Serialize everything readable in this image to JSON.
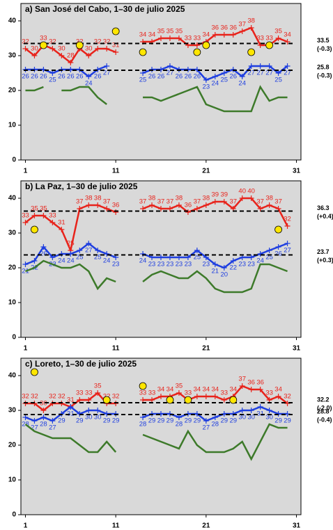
{
  "chart_data": [
    {
      "type": "line",
      "title": "a) San José del Cabo, 1–30 de julio 2025",
      "xlim": [
        0.5,
        31.5
      ],
      "ylim": [
        0,
        45
      ],
      "xticks": [
        1,
        11,
        21,
        31
      ],
      "yticks": [
        0,
        10,
        20,
        30,
        40
      ],
      "x": [
        1,
        2,
        3,
        4,
        5,
        6,
        7,
        8,
        9,
        10,
        11,
        12,
        13,
        14,
        15,
        16,
        17,
        18,
        19,
        20,
        21,
        22,
        23,
        24,
        25,
        26,
        27,
        28,
        29,
        30
      ],
      "series": [
        {
          "color": "#e8231b",
          "labels": true,
          "label_side": "above",
          "values": [
            32,
            30,
            33,
            32,
            30,
            28,
            32,
            30,
            32,
            32,
            31,
            null,
            null,
            34,
            34,
            35,
            35,
            35,
            33,
            33,
            34,
            36,
            36,
            36,
            37,
            38,
            33,
            33,
            35,
            34
          ]
        },
        {
          "color": "#1f3fe0",
          "labels": true,
          "label_side": "below",
          "values": [
            26,
            26,
            26,
            25,
            26,
            26,
            26,
            24,
            26,
            27,
            null,
            null,
            null,
            25,
            26,
            26,
            27,
            26,
            26,
            26,
            23,
            24,
            25,
            26,
            24,
            27,
            27,
            27,
            25,
            27
          ]
        },
        {
          "color": "#3d7a2a",
          "labels": false,
          "values": [
            20,
            20,
            21,
            null,
            20,
            20,
            21,
            21,
            18,
            16,
            null,
            null,
            null,
            18,
            18,
            17,
            18,
            19,
            20,
            21,
            16,
            15,
            14,
            14,
            14,
            14,
            21,
            17,
            18,
            18
          ]
        }
      ],
      "points": {
        "color": "#ffe600",
        "x": [
          3,
          7,
          11,
          14,
          20,
          21,
          26,
          28
        ],
        "y": [
          33,
          33,
          37,
          31,
          31,
          33,
          31,
          33
        ]
      },
      "hlines": [
        {
          "value": 33.5,
          "label": "33.5",
          "anomaly": "(-0.3)"
        },
        {
          "value": 25.8,
          "label": "25.8",
          "anomaly": "(-0.3)"
        }
      ]
    },
    {
      "type": "line",
      "title": "b) La Paz, 1–30 de julio 2025",
      "xlim": [
        0.5,
        31.5
      ],
      "ylim": [
        0,
        45
      ],
      "xticks": [
        1,
        11,
        21,
        31
      ],
      "yticks": [
        0,
        10,
        20,
        30,
        40
      ],
      "x": [
        1,
        2,
        3,
        4,
        5,
        6,
        7,
        8,
        9,
        10,
        11,
        12,
        13,
        14,
        15,
        16,
        17,
        18,
        19,
        20,
        21,
        22,
        23,
        24,
        25,
        26,
        27,
        28,
        29,
        30
      ],
      "series": [
        {
          "color": "#e8231b",
          "labels": true,
          "label_side": "above",
          "values": [
            33,
            35,
            35,
            33,
            31,
            25,
            37,
            38,
            38,
            37,
            36,
            null,
            null,
            37,
            38,
            37,
            37,
            38,
            36,
            37,
            38,
            39,
            39,
            37,
            40,
            40,
            37,
            38,
            37,
            32
          ]
        },
        {
          "color": "#1f3fe0",
          "labels": true,
          "label_side": "below",
          "values": [
            21,
            22,
            26,
            23,
            24,
            24,
            25,
            27,
            25,
            24,
            23,
            null,
            null,
            24,
            23,
            23,
            23,
            23,
            23,
            25,
            23,
            21,
            20,
            22,
            23,
            23,
            24,
            25,
            26,
            27
          ]
        },
        {
          "color": "#3d7a2a",
          "labels": false,
          "values": [
            19,
            20,
            22,
            21,
            20,
            20,
            21,
            19,
            14,
            17,
            16,
            null,
            null,
            16,
            18,
            19,
            18,
            17,
            17,
            19,
            17,
            14,
            13,
            13,
            13,
            14,
            21,
            21,
            20,
            19
          ]
        }
      ],
      "points": {
        "color": "#ffe600",
        "x": [
          2,
          29
        ],
        "y": [
          31,
          31
        ]
      },
      "hlines": [
        {
          "value": 36.3,
          "label": "36.3",
          "anomaly": "(+0.4)"
        },
        {
          "value": 23.7,
          "label": "23.7",
          "anomaly": "(+0.3)"
        }
      ]
    },
    {
      "type": "line",
      "title": "c) Loreto, 1–30 de julio 2025",
      "xlim": [
        0.5,
        31.5
      ],
      "ylim": [
        0,
        45
      ],
      "xticks": [
        1,
        11,
        21,
        31
      ],
      "yticks": [
        0,
        10,
        20,
        30,
        40
      ],
      "x": [
        1,
        2,
        3,
        4,
        5,
        6,
        7,
        8,
        9,
        10,
        11,
        12,
        13,
        14,
        15,
        16,
        17,
        18,
        19,
        20,
        21,
        22,
        23,
        24,
        25,
        26,
        27,
        28,
        29,
        30
      ],
      "series": [
        {
          "color": "#e8231b",
          "labels": true,
          "label_side": "above",
          "values": [
            32,
            32,
            30,
            32,
            32,
            31,
            33,
            33,
            35,
            32,
            32,
            null,
            null,
            33,
            33,
            34,
            34,
            35,
            33,
            34,
            34,
            34,
            33,
            34,
            37,
            36,
            36,
            33,
            34,
            32
          ]
        },
        {
          "color": "#1f3fe0",
          "labels": true,
          "label_side": "below",
          "values": [
            28,
            27,
            28,
            27,
            29,
            31,
            29,
            30,
            30,
            29,
            29,
            null,
            null,
            28,
            29,
            29,
            29,
            28,
            29,
            29,
            27,
            28,
            29,
            29,
            30,
            30,
            31,
            30,
            29,
            29
          ]
        },
        {
          "color": "#3d7a2a",
          "labels": false,
          "values": [
            26,
            24,
            23,
            22,
            22,
            22,
            20,
            18,
            18,
            21,
            18,
            null,
            null,
            23,
            22,
            21,
            20,
            19,
            24,
            20,
            18,
            18,
            18,
            19,
            21,
            16,
            21,
            26,
            25,
            25
          ]
        }
      ],
      "points": {
        "color": "#ffe600",
        "x": [
          2,
          10,
          14,
          17,
          19,
          24
        ],
        "y": [
          41,
          33,
          37,
          33,
          33,
          33
        ]
      },
      "hlines": [
        {
          "value": 32.2,
          "label": "32.2",
          "anomaly": "(-2.0)"
        },
        {
          "value": 28.8,
          "label": "28.8",
          "anomaly": "(-0.4)"
        }
      ]
    }
  ]
}
